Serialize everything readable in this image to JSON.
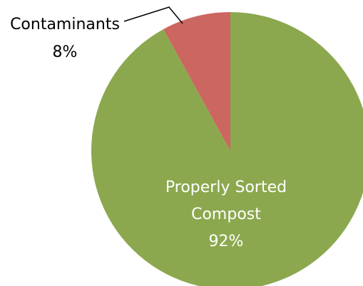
{
  "chart_data": {
    "type": "pie",
    "title": "",
    "start_angle_deg": 0,
    "direction": "clockwise",
    "slices": [
      {
        "label": "Properly Sorted Compost",
        "label_lines": [
          "Properly Sorted",
          "Compost"
        ],
        "value": 92,
        "percent_label": "92%",
        "color": "#8BA84E",
        "label_color": "#ffffff"
      },
      {
        "label": "Contaminants",
        "label_lines": [
          "Contaminants"
        ],
        "value": 8,
        "percent_label": "8%",
        "color": "#CC6660",
        "label_color": "#000000"
      }
    ],
    "legend": "none"
  }
}
